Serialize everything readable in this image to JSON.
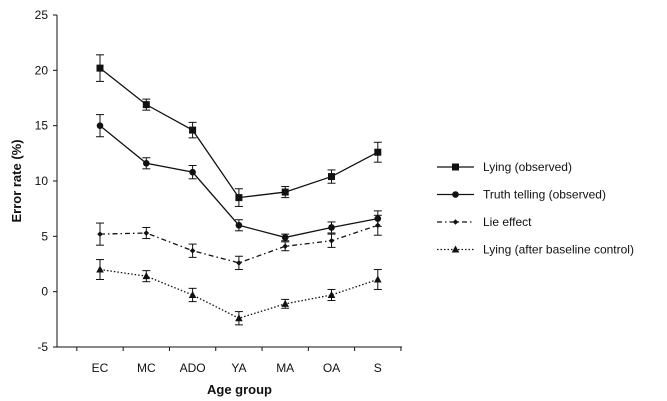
{
  "chart_data": {
    "type": "line",
    "xlabel": "Age group",
    "ylabel": "Error rate (%)",
    "ylim": [
      -5,
      25
    ],
    "yticks": [
      -5,
      0,
      5,
      10,
      15,
      20,
      25
    ],
    "grid": false,
    "legend_position": "right",
    "categories": [
      "EC",
      "MC",
      "ADO",
      "YA",
      "MA",
      "OA",
      "S"
    ],
    "series": [
      {
        "name": "Lying (observed)",
        "values": [
          20.2,
          16.9,
          14.6,
          8.5,
          9.0,
          10.4,
          12.6
        ],
        "errors": [
          1.2,
          0.5,
          0.7,
          0.8,
          0.5,
          0.6,
          0.9
        ],
        "marker": "square",
        "line_style": "solid"
      },
      {
        "name": "Truth telling (observed)",
        "values": [
          15.0,
          11.6,
          10.8,
          6.0,
          4.9,
          5.8,
          6.6
        ],
        "errors": [
          1.0,
          0.5,
          0.6,
          0.5,
          0.3,
          0.5,
          0.7
        ],
        "marker": "circle",
        "line_style": "solid"
      },
      {
        "name": "Lie effect",
        "values": [
          5.2,
          5.3,
          3.7,
          2.6,
          4.1,
          4.6,
          6.0
        ],
        "errors": [
          1.0,
          0.5,
          0.6,
          0.6,
          0.4,
          0.6,
          0.9
        ],
        "marker": "diamond",
        "line_style": "dashdot"
      },
      {
        "name": "Lying (after baseline control)",
        "values": [
          2.0,
          1.4,
          -0.3,
          -2.4,
          -1.1,
          -0.3,
          1.1
        ],
        "errors": [
          0.9,
          0.5,
          0.6,
          0.6,
          0.4,
          0.5,
          0.9
        ],
        "marker": "triangle",
        "line_style": "dotted"
      }
    ]
  }
}
